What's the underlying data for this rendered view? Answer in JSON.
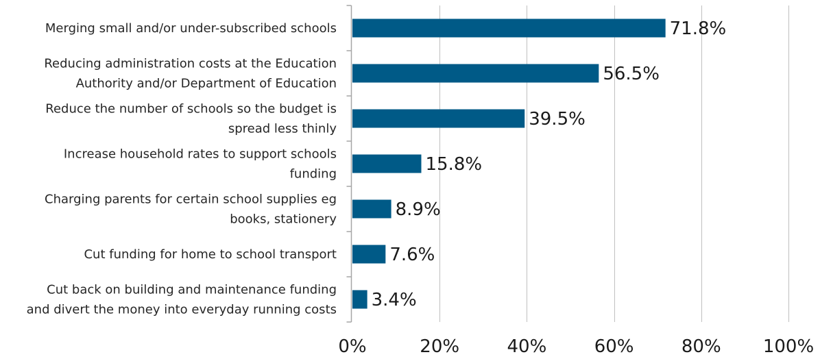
{
  "chart_data": {
    "type": "bar",
    "orientation": "horizontal",
    "categories": [
      [
        "Merging small and/or under-subscribed schools"
      ],
      [
        "Reducing administration costs at the Education",
        "Authority and/or Department of Education"
      ],
      [
        "Reduce the number of schools so the budget is",
        "spread less thinly"
      ],
      [
        "Increase household rates to support schools",
        "funding"
      ],
      [
        "Charging parents for certain school supplies eg",
        "books, stationery"
      ],
      [
        "Cut funding for home to school transport"
      ],
      [
        "Cut back on building and maintenance funding",
        "and divert the money into everyday running costs"
      ]
    ],
    "values": [
      71.8,
      56.5,
      39.5,
      15.8,
      8.9,
      7.6,
      3.4
    ],
    "value_labels": [
      "71.8%",
      "56.5%",
      "39.5%",
      "15.8%",
      "8.9%",
      "7.6%",
      "3.4%"
    ],
    "xlim": [
      0,
      100
    ],
    "x_ticks": [
      0,
      20,
      40,
      60,
      80,
      100
    ],
    "x_tick_labels": [
      "0%",
      "20%",
      "40%",
      "60%",
      "80%",
      "100%"
    ],
    "title": "",
    "xlabel": "",
    "ylabel": "",
    "grid": "vertical",
    "legend": "none",
    "colors": {
      "bar": "#005a87",
      "grid": "#bfbfbf",
      "axis": "#a6a6a6"
    }
  }
}
